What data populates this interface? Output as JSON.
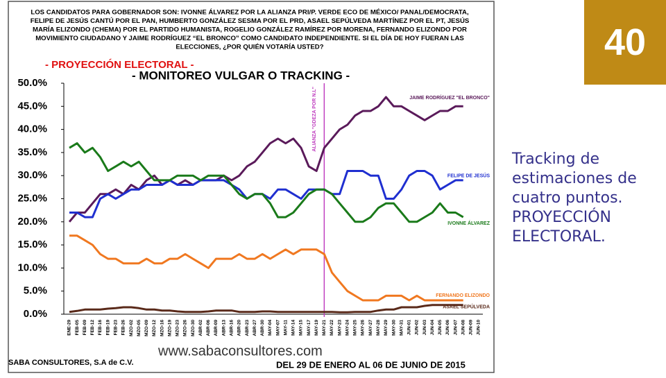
{
  "header": {
    "lines": [
      "LOS CANDIDATOS PARA GOBERNADOR SON: IVONNE ÁLVAREZ POR LA ALIANZA PRI/P. VERDE ECO DE MÉXICO/ PANAL/DEMOCRATA,",
      "FELIPE DE JESÚS CANTÚ POR EL PAN, HUMBERTO GONZÁLEZ SESMA POR EL PRD, ASAEL SEPÚLVEDA MARTÍNEZ POR EL PT, JESÚS",
      "MARÍA ELIZONDO (CHEMA)  POR EL PARTIDO HUMANISTA, ROGELIO GONZÁLEZ RAMÍREZ POR MORENA, FERNANDO ELIZONDO POR",
      "MOVIMIENTO CIUDADANO Y JAIME RODRÍGUEZ “EL BRONCO” COMO CANDIDATO INDEPENDIENTE. SI EL DÍA DE HOY FUERAN LAS",
      "ELECCIONES, ¿POR QUIÉN VOTARÍA USTED?"
    ]
  },
  "chart_data": {
    "type": "line",
    "title": "- PROYECCIÓN ELECTORAL -",
    "subtitle": "- MONITOREO VULGAR O TRACKING -",
    "categories": [
      "ENE-29",
      "FEB-05",
      "FEB-09",
      "FEB-12",
      "FEB-16",
      "FEB-19",
      "FEB-23",
      "FEB-26",
      "MZO-02",
      "MZO-05",
      "MZO-09",
      "MZO-12",
      "MZO-16",
      "MZO-19",
      "MZO-23",
      "MZO-26",
      "MZO-30",
      "ABR-02",
      "ABR-06",
      "ABR-09",
      "ABR-13",
      "ABR-16",
      "ABR-20",
      "ABR-23",
      "ABR-27",
      "ABR-30",
      "MAY-04",
      "MAY-07",
      "MAY-11",
      "MAY-14",
      "MAY-15",
      "MAY-17",
      "MAY-19",
      "MAY-21",
      "MAY-22",
      "MAY-23",
      "MAY-24",
      "MAY-25",
      "MAY-26",
      "MAY-27",
      "MAY-28",
      "MAY-29",
      "MAY-30",
      "MAY-31",
      "JUN-01",
      "JUN-02",
      "JUN-03",
      "JUN-04",
      "JUN-05",
      "JUN-06",
      "JUN-07",
      "JUN-08",
      "JUN-09",
      "JUN-10"
    ],
    "ylim": [
      0,
      50
    ],
    "yticks": [
      {
        "value": 0,
        "label": "0.0%"
      },
      {
        "value": 5,
        "label": "5.0%"
      },
      {
        "value": 10,
        "label": "10.0%"
      },
      {
        "value": 15,
        "label": "15.0%"
      },
      {
        "value": 20,
        "label": "20.0%"
      },
      {
        "value": 25,
        "label": "25.0%"
      },
      {
        "value": 30,
        "label": "30.0%"
      },
      {
        "value": 35,
        "label": "35.0%"
      },
      {
        "value": 40,
        "label": "40.0%"
      },
      {
        "value": 45,
        "label": "45.0%"
      },
      {
        "value": 50,
        "label": "50.0%"
      }
    ],
    "grid": false,
    "annotation": {
      "text": "ALIANZA \"GDEZA POR N.L\"",
      "x": "MAY-21",
      "color": "#c040c0"
    },
    "series": [
      {
        "name": "JAIME RODRÍGUEZ \"EL BRONCO\"",
        "color": "#5a1a5a",
        "values": [
          20,
          22,
          22,
          24,
          26,
          26,
          27,
          26,
          28,
          27,
          29,
          30,
          28,
          29,
          28,
          29,
          28,
          29,
          29,
          29,
          30,
          29,
          30,
          32,
          33,
          35,
          37,
          38,
          37,
          38,
          36,
          32,
          31,
          36,
          38,
          40,
          41,
          43,
          44,
          44,
          45,
          47,
          45,
          45,
          44,
          43,
          42,
          43,
          44,
          44,
          45,
          45,
          null,
          null
        ]
      },
      {
        "name": "FELIPE DE JESÚS",
        "color": "#1f2fd0",
        "values": [
          22,
          22,
          21,
          21,
          25,
          26,
          25,
          26,
          27,
          27,
          28,
          28,
          28,
          29,
          28,
          28,
          28,
          29,
          29,
          29,
          29,
          28,
          27,
          25,
          26,
          26,
          25,
          27,
          27,
          26,
          25,
          27,
          27,
          27,
          26,
          26,
          31,
          31,
          31,
          30,
          30,
          25,
          25,
          27,
          30,
          31,
          31,
          30,
          27,
          28,
          29,
          29,
          null,
          null
        ]
      },
      {
        "name": "IVONNE ÁLVAREZ",
        "color": "#1a7a1a",
        "values": [
          36,
          37,
          35,
          36,
          34,
          31,
          32,
          33,
          32,
          33,
          31,
          29,
          29,
          29,
          30,
          30,
          30,
          29,
          30,
          30,
          30,
          28,
          26,
          25,
          26,
          26,
          24,
          21,
          21,
          22,
          24,
          26,
          27,
          27,
          26,
          24,
          22,
          20,
          20,
          21,
          23,
          24,
          24,
          22,
          20,
          20,
          21,
          22,
          24,
          22,
          22,
          21,
          null,
          null
        ]
      },
      {
        "name": "FERNANDO ELIZONDO",
        "color": "#f07820",
        "values": [
          17,
          17,
          16,
          15,
          13,
          12,
          12,
          11,
          11,
          11,
          12,
          11,
          11,
          12,
          12,
          13,
          12,
          11,
          10,
          12,
          12,
          12,
          13,
          12,
          12,
          13,
          12,
          13,
          14,
          13,
          14,
          14,
          14,
          13,
          9,
          7,
          5,
          4,
          3,
          3,
          3,
          4,
          4,
          4,
          3,
          4,
          3,
          3,
          3,
          3,
          3,
          3,
          null,
          null
        ]
      },
      {
        "name": "ASAEL SEPÚLVEDA",
        "color": "#5a2a1a",
        "values": [
          0.5,
          0.7,
          1,
          1,
          1,
          1.2,
          1.3,
          1.5,
          1.5,
          1.3,
          1,
          1,
          0.8,
          0.8,
          0.6,
          0.5,
          0.5,
          0.5,
          0.6,
          0.8,
          0.8,
          0.8,
          0.5,
          0.5,
          0.5,
          0.6,
          0.6,
          0.5,
          0.5,
          0.5,
          0.5,
          0.5,
          0.5,
          0.5,
          0.5,
          0.4,
          0.4,
          0.5,
          0.5,
          0.5,
          0.8,
          1,
          1,
          1.5,
          1.5,
          1.5,
          1.8,
          2,
          2,
          2,
          2,
          2,
          null,
          null
        ]
      }
    ]
  },
  "url": "www.sabaconsultores.com",
  "footer": {
    "left": "SABA CONSULTORES, S.A de C.V.",
    "right": "DEL 29 DE ENERO AL 06 DE JUNIO DE 2015"
  },
  "slide_number": "40",
  "side_text": {
    "lines": [
      "Tracking de",
      "estimaciones de",
      "cuatro puntos.",
      "PROYECCIÓN",
      "ELECTORAL."
    ]
  }
}
